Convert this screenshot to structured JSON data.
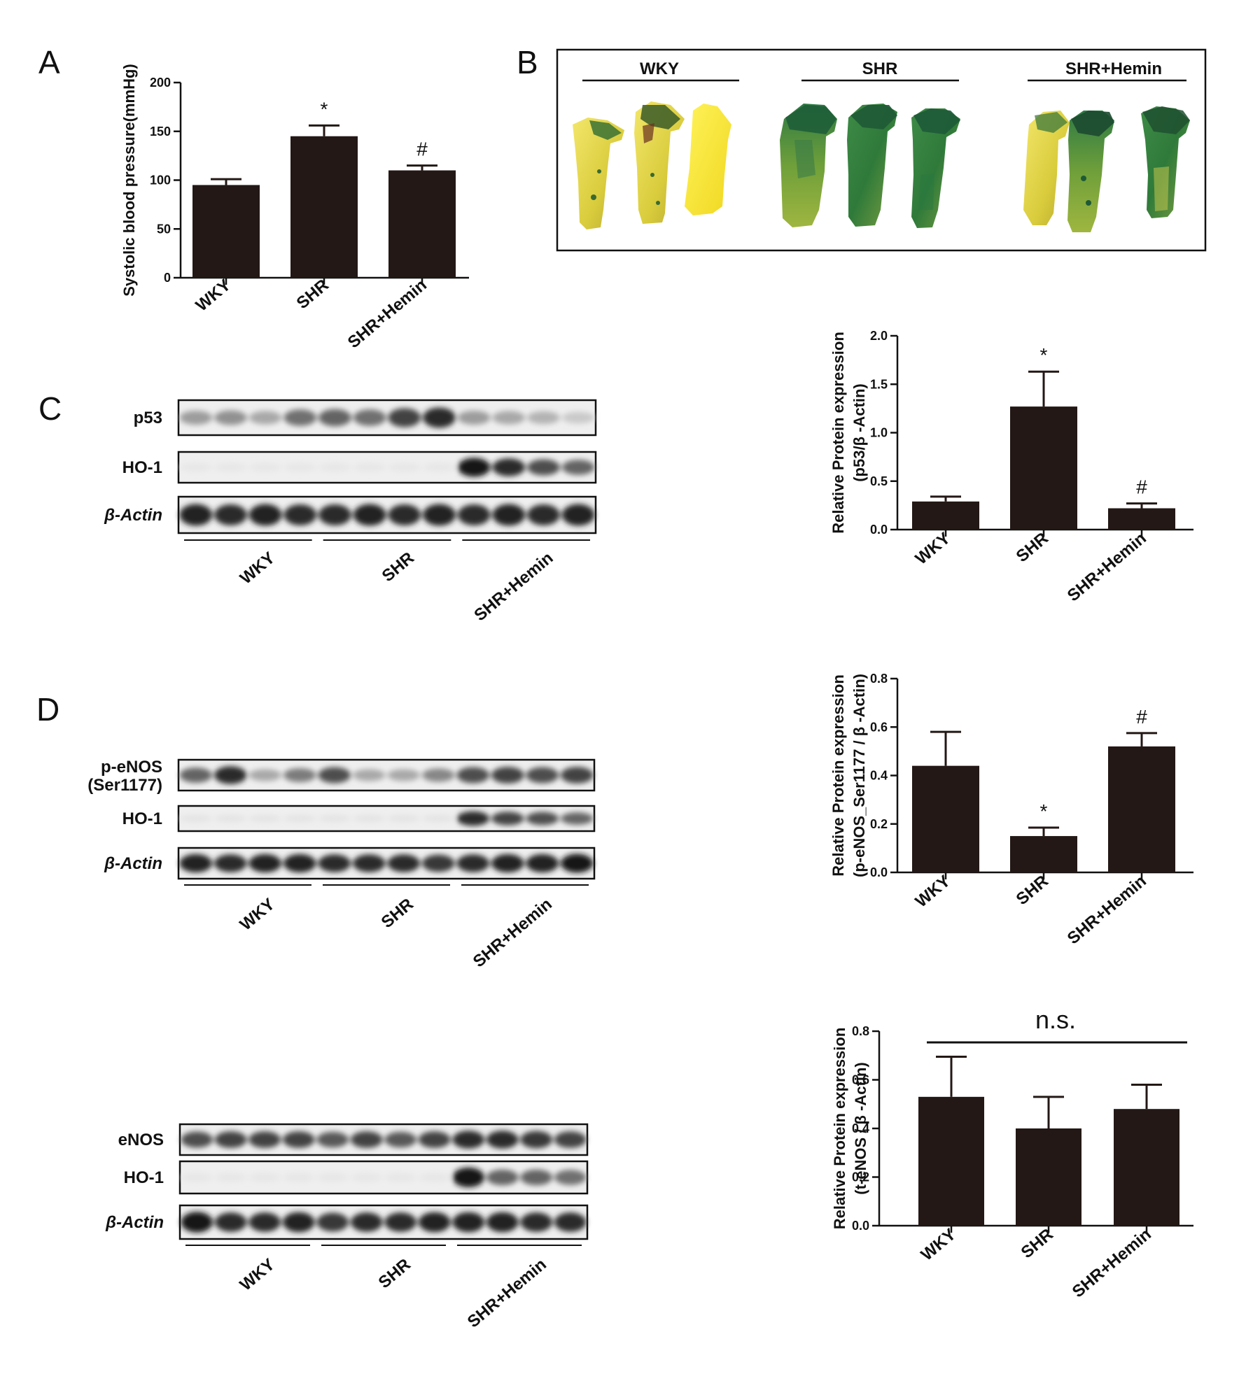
{
  "panels": {
    "A": "A",
    "B": "B",
    "C": "C",
    "D": "D"
  },
  "groups": [
    "WKY",
    "SHR",
    "SHR+Hemin"
  ],
  "blots": {
    "C": {
      "rows": [
        {
          "label": "p53",
          "intensity": [
            0.35,
            0.4,
            0.3,
            0.55,
            0.6,
            0.55,
            0.75,
            0.85,
            0.35,
            0.3,
            0.25,
            0.15
          ]
        },
        {
          "label": "HO-1",
          "intensity": [
            0.02,
            0.02,
            0.02,
            0.02,
            0.02,
            0.02,
            0.02,
            0.02,
            0.95,
            0.85,
            0.7,
            0.6
          ]
        },
        {
          "label": "β-Actin",
          "intensity": [
            0.9,
            0.85,
            0.9,
            0.85,
            0.85,
            0.9,
            0.85,
            0.9,
            0.85,
            0.9,
            0.85,
            0.9
          ]
        }
      ]
    },
    "D1": {
      "rows": [
        {
          "label": "p-eNOS",
          "label2": "(Ser1177)",
          "intensity": [
            0.6,
            0.85,
            0.3,
            0.5,
            0.7,
            0.3,
            0.3,
            0.45,
            0.7,
            0.75,
            0.7,
            0.75
          ]
        },
        {
          "label": "HO-1",
          "intensity": [
            0.03,
            0.03,
            0.03,
            0.03,
            0.03,
            0.03,
            0.03,
            0.03,
            0.85,
            0.75,
            0.7,
            0.6
          ]
        },
        {
          "label": "β-Actin",
          "intensity": [
            0.9,
            0.85,
            0.9,
            0.9,
            0.85,
            0.85,
            0.85,
            0.8,
            0.85,
            0.9,
            0.9,
            0.95
          ]
        }
      ]
    },
    "D2": {
      "rows": [
        {
          "label": "eNOS",
          "intensity": [
            0.7,
            0.75,
            0.75,
            0.75,
            0.65,
            0.75,
            0.65,
            0.75,
            0.85,
            0.85,
            0.8,
            0.75
          ]
        },
        {
          "label": "HO-1",
          "intensity": [
            0.02,
            0.02,
            0.02,
            0.02,
            0.02,
            0.02,
            0.02,
            0.02,
            0.95,
            0.6,
            0.6,
            0.55
          ]
        },
        {
          "label": "β-Actin",
          "intensity": [
            0.95,
            0.85,
            0.85,
            0.9,
            0.8,
            0.85,
            0.85,
            0.9,
            0.9,
            0.9,
            0.85,
            0.85
          ]
        }
      ]
    }
  },
  "staining": {
    "headers": [
      "WKY",
      "SHR",
      "SHR+Hemin"
    ]
  },
  "chart_data": [
    {
      "id": "A",
      "type": "bar",
      "categories": [
        "WKY",
        "SHR",
        "SHR+Hemin"
      ],
      "values": [
        95,
        145,
        110
      ],
      "errors": [
        6,
        11,
        5
      ],
      "annotations": [
        "",
        "*",
        "#"
      ],
      "ylabel": "Systolic blood pressure(mmHg)",
      "ylim": [
        0,
        200
      ],
      "yticks": [
        "0",
        "50",
        "100",
        "150",
        "200"
      ],
      "ytick_values": [
        0,
        50,
        100,
        150,
        200
      ]
    },
    {
      "id": "C",
      "type": "bar",
      "categories": [
        "WKY",
        "SHR",
        "SHR+Hemin"
      ],
      "values": [
        0.29,
        1.27,
        0.22
      ],
      "errors": [
        0.05,
        0.36,
        0.05
      ],
      "annotations": [
        "",
        "*",
        "#"
      ],
      "ylabel": "Relative Protein expression",
      "ylabel2": "(p53/β -Actin)",
      "ylim": [
        0,
        2.0
      ],
      "yticks": [
        "0.0",
        "0.5",
        "1.0",
        "1.5",
        "2.0"
      ],
      "ytick_values": [
        0,
        0.5,
        1.0,
        1.5,
        2.0
      ]
    },
    {
      "id": "D1",
      "type": "bar",
      "categories": [
        "WKY",
        "SHR",
        "SHR+Hemin"
      ],
      "values": [
        0.44,
        0.15,
        0.52
      ],
      "errors": [
        0.14,
        0.035,
        0.055
      ],
      "annotations": [
        "",
        "*",
        "#"
      ],
      "ylabel": "Relative Protein expression",
      "ylabel2": "(p-eNOS_Ser1177 / β -Actin)",
      "ylim": [
        0,
        0.8
      ],
      "yticks": [
        "0.0",
        "0.2",
        "0.4",
        "0.6",
        "0.8"
      ],
      "ytick_values": [
        0,
        0.2,
        0.4,
        0.6,
        0.8
      ]
    },
    {
      "id": "D2",
      "type": "bar",
      "categories": [
        "WKY",
        "SHR",
        "SHR+Hemin"
      ],
      "values": [
        0.53,
        0.4,
        0.48
      ],
      "errors": [
        0.165,
        0.13,
        0.1
      ],
      "annotations": [
        "",
        "",
        ""
      ],
      "bracket_label": "n.s.",
      "ylabel": "Relative Protein expression",
      "ylabel2": "(t-eNOS / β -Actin)",
      "ylim": [
        0,
        0.8
      ],
      "yticks": [
        "0.0",
        "0.2",
        "0.4",
        "0.6",
        "0.8"
      ],
      "ytick_values": [
        0,
        0.2,
        0.4,
        0.6,
        0.8
      ]
    }
  ]
}
